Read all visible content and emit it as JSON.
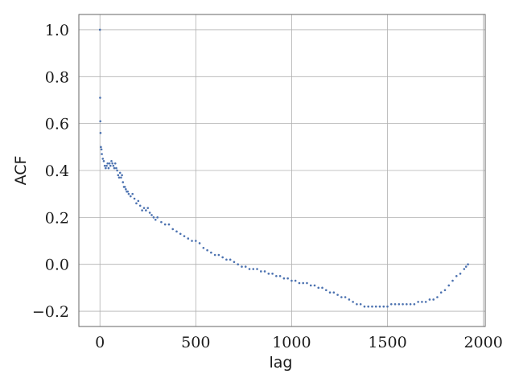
{
  "chart_data": {
    "type": "scatter",
    "title": "",
    "xlabel": "lag",
    "ylabel": "ACF",
    "xlim": [
      -110,
      2010
    ],
    "ylim": [
      -0.265,
      1.065
    ],
    "xticks": [
      0,
      500,
      1000,
      1500,
      2000
    ],
    "xtick_labels": [
      "0",
      "500",
      "1000",
      "1500",
      "2000"
    ],
    "yticks": [
      -0.2,
      0.0,
      0.2,
      0.4,
      0.6,
      0.8,
      1.0
    ],
    "ytick_labels": [
      "−0.2",
      "0.0",
      "0.2",
      "0.4",
      "0.6",
      "0.8",
      "1.0"
    ],
    "grid": true,
    "legend": "none",
    "colors": {
      "points": "#4c72b0"
    },
    "series": [
      {
        "x": [
          0,
          1,
          2,
          3,
          5,
          8,
          10,
          15,
          20,
          25,
          30,
          35,
          40,
          45,
          50,
          55,
          60,
          65,
          70,
          75,
          80,
          85,
          90,
          95,
          100,
          105,
          110,
          115,
          120,
          125,
          130,
          135,
          140,
          145,
          150,
          160,
          170,
          180,
          190,
          200,
          210,
          220,
          230,
          240,
          250,
          260,
          270,
          280,
          290,
          300,
          320,
          340,
          360,
          380,
          400,
          420,
          440,
          460,
          480,
          500,
          520,
          540,
          560,
          580,
          600,
          620,
          640,
          660,
          680,
          700,
          720,
          740,
          760,
          780,
          800,
          820,
          840,
          860,
          880,
          900,
          920,
          940,
          960,
          980,
          1000,
          1020,
          1040,
          1060,
          1080,
          1100,
          1120,
          1140,
          1160,
          1180,
          1200,
          1220,
          1240,
          1260,
          1280,
          1300,
          1320,
          1340,
          1360,
          1380,
          1400,
          1420,
          1440,
          1460,
          1480,
          1500,
          1520,
          1540,
          1560,
          1580,
          1600,
          1620,
          1640,
          1660,
          1680,
          1700,
          1720,
          1740,
          1760,
          1780,
          1800,
          1820,
          1840,
          1860,
          1880,
          1900,
          1910,
          1920
        ],
        "y": [
          1.0,
          0.71,
          0.61,
          0.56,
          0.5,
          0.49,
          0.47,
          0.45,
          0.44,
          0.42,
          0.41,
          0.42,
          0.43,
          0.41,
          0.43,
          0.42,
          0.44,
          0.43,
          0.42,
          0.41,
          0.43,
          0.41,
          0.4,
          0.38,
          0.37,
          0.39,
          0.37,
          0.38,
          0.35,
          0.33,
          0.33,
          0.32,
          0.31,
          0.31,
          0.3,
          0.29,
          0.3,
          0.28,
          0.26,
          0.27,
          0.25,
          0.23,
          0.24,
          0.23,
          0.24,
          0.22,
          0.21,
          0.2,
          0.19,
          0.2,
          0.18,
          0.17,
          0.17,
          0.15,
          0.14,
          0.13,
          0.12,
          0.11,
          0.1,
          0.1,
          0.09,
          0.07,
          0.06,
          0.05,
          0.04,
          0.04,
          0.03,
          0.02,
          0.02,
          0.01,
          0.0,
          -0.01,
          -0.01,
          -0.02,
          -0.02,
          -0.02,
          -0.03,
          -0.03,
          -0.04,
          -0.04,
          -0.05,
          -0.05,
          -0.06,
          -0.06,
          -0.07,
          -0.07,
          -0.08,
          -0.08,
          -0.08,
          -0.09,
          -0.09,
          -0.1,
          -0.1,
          -0.11,
          -0.12,
          -0.12,
          -0.13,
          -0.14,
          -0.14,
          -0.15,
          -0.16,
          -0.17,
          -0.17,
          -0.18,
          -0.18,
          -0.18,
          -0.18,
          -0.18,
          -0.18,
          -0.18,
          -0.17,
          -0.17,
          -0.17,
          -0.17,
          -0.17,
          -0.17,
          -0.17,
          -0.16,
          -0.16,
          -0.16,
          -0.15,
          -0.15,
          -0.14,
          -0.12,
          -0.11,
          -0.09,
          -0.07,
          -0.05,
          -0.04,
          -0.02,
          -0.01,
          0.0
        ]
      }
    ]
  }
}
